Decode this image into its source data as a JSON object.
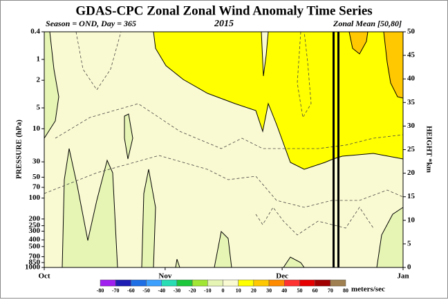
{
  "chart_data": {
    "type": "contour",
    "title": "GDAS-CPC Zonal Zonal Wind Anomaly Time Series",
    "subtitle_left": "Season = OND, Day = 365",
    "subtitle_center": "2015",
    "subtitle_right": "Zonal Mean [50,80]",
    "ylabel": "PRESSURE (hPa)",
    "y2label": "HEIGHT *km",
    "ylim": [
      1000,
      0.4
    ],
    "ylog": true,
    "yticks": [
      0.4,
      1,
      2,
      5,
      10,
      30,
      50,
      70,
      100,
      200,
      250,
      300,
      400,
      500,
      700,
      850,
      1000
    ],
    "y2lim": [
      0,
      50
    ],
    "y2ticks": [
      0,
      5,
      10,
      15,
      20,
      25,
      30,
      35,
      40,
      45,
      50
    ],
    "xlim": [
      0,
      92
    ],
    "xticks": [
      {
        "value": 0,
        "label": "Oct"
      },
      {
        "value": 31,
        "label": "Nov"
      },
      {
        "value": 61,
        "label": "Dec"
      },
      {
        "value": 92,
        "label": "Jan"
      }
    ],
    "colorbar": {
      "label": "meters/sec",
      "levels": [
        -80,
        -70,
        -60,
        -50,
        -40,
        -30,
        -20,
        -10,
        0,
        10,
        20,
        30,
        40,
        50,
        60,
        70,
        80
      ],
      "colors": [
        "#a020f0",
        "#1e1eb4",
        "#1e6ee6",
        "#3ca0ff",
        "#28dcb4",
        "#1ec83c",
        "#a0e632",
        "#e6f5b4",
        "#fafad2",
        "#ffff00",
        "#ffc800",
        "#ff8c00",
        "#ff3232",
        "#e60000",
        "#a00000",
        "#a08050"
      ]
    }
  }
}
